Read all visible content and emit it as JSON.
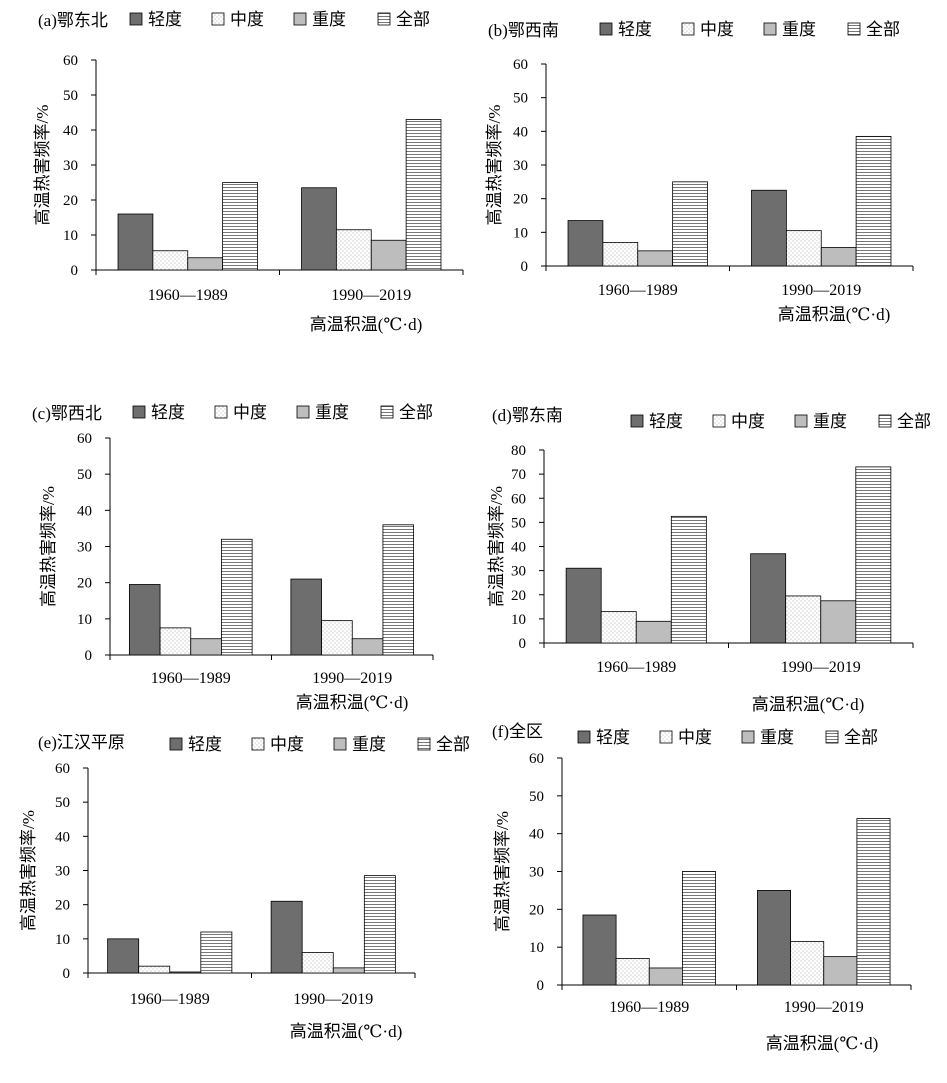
{
  "patterns": {
    "light": {
      "fill": "#6e6e6e"
    },
    "medium": {
      "fill": "#ffffff",
      "dots": "#9a9a9a"
    },
    "heavy": {
      "fill": "#bdbdbd"
    },
    "all": {
      "fill": "#ffffff",
      "lines": "#555555"
    }
  },
  "chart_data": [
    {
      "type": "bar",
      "title": "(a)鄂东北",
      "categories": [
        "1960—1989",
        "1990—2019"
      ],
      "series": [
        {
          "name": "轻度",
          "key": "light",
          "values": [
            16,
            23.5
          ]
        },
        {
          "name": "中度",
          "key": "medium",
          "values": [
            5.5,
            11.5
          ]
        },
        {
          "name": "重度",
          "key": "heavy",
          "values": [
            3.5,
            8.5
          ]
        },
        {
          "name": "全部",
          "key": "all",
          "values": [
            25,
            43
          ]
        }
      ],
      "ylabel": "高温热害频率/%",
      "xlabel": "高温积温(℃·d)",
      "ylim": [
        0,
        60
      ],
      "yticks": [
        "0",
        "10",
        "20",
        "30",
        "40",
        "50",
        "60"
      ],
      "legend": "top"
    },
    {
      "type": "bar",
      "title": "(b)鄂西南",
      "categories": [
        "1960—1989",
        "1990—2019"
      ],
      "series": [
        {
          "name": "轻度",
          "key": "light",
          "values": [
            13.5,
            22.5
          ]
        },
        {
          "name": "中度",
          "key": "medium",
          "values": [
            7,
            10.5
          ]
        },
        {
          "name": "重度",
          "key": "heavy",
          "values": [
            4.5,
            5.5
          ]
        },
        {
          "name": "全部",
          "key": "all",
          "values": [
            25,
            38.5
          ]
        }
      ],
      "ylabel": "高温热害频率/%",
      "xlabel": "高温积温(℃·d)",
      "ylim": [
        0,
        60
      ],
      "yticks": [
        "0",
        "10",
        "20",
        "30",
        "40",
        "50",
        "60"
      ],
      "legend": "top"
    },
    {
      "type": "bar",
      "title": "(c)鄂西北",
      "categories": [
        "1960—1989",
        "1990—2019"
      ],
      "series": [
        {
          "name": "轻度",
          "key": "light",
          "values": [
            19.5,
            21
          ]
        },
        {
          "name": "中度",
          "key": "medium",
          "values": [
            7.5,
            9.5
          ]
        },
        {
          "name": "重度",
          "key": "heavy",
          "values": [
            4.5,
            4.5
          ]
        },
        {
          "name": "全部",
          "key": "all",
          "values": [
            32,
            36
          ]
        }
      ],
      "ylabel": "高温热害频率/%",
      "xlabel": "高温积温(℃·d)",
      "ylim": [
        0,
        60
      ],
      "yticks": [
        "0",
        "10",
        "20",
        "30",
        "40",
        "50",
        "60"
      ],
      "legend": "top"
    },
    {
      "type": "bar",
      "title": "(d)鄂东南",
      "categories": [
        "1960—1989",
        "1990—2019"
      ],
      "series": [
        {
          "name": "轻度",
          "key": "light",
          "values": [
            31,
            37
          ]
        },
        {
          "name": "中度",
          "key": "medium",
          "values": [
            13,
            19.5
          ]
        },
        {
          "name": "重度",
          "key": "heavy",
          "values": [
            9,
            17.5
          ]
        },
        {
          "name": "全部",
          "key": "all",
          "values": [
            52.5,
            73
          ]
        }
      ],
      "ylabel": "高温热害频率/%",
      "xlabel": "高温积温(℃·d)",
      "ylim": [
        0,
        80
      ],
      "yticks": [
        "0",
        "10",
        "20",
        "30",
        "40",
        "50",
        "60",
        "70",
        "80"
      ],
      "legend": "top"
    },
    {
      "type": "bar",
      "title": "(e)江汉平原",
      "categories": [
        "1960—1989",
        "1990—2019"
      ],
      "series": [
        {
          "name": "轻度",
          "key": "light",
          "values": [
            10,
            21
          ]
        },
        {
          "name": "中度",
          "key": "medium",
          "values": [
            2,
            6
          ]
        },
        {
          "name": "重度",
          "key": "heavy",
          "values": [
            0.3,
            1.5
          ]
        },
        {
          "name": "全部",
          "key": "all",
          "values": [
            12,
            28.5
          ]
        }
      ],
      "ylabel": "高温热害频率/%",
      "xlabel": "高温积温(℃·d)",
      "ylim": [
        0,
        60
      ],
      "yticks": [
        "0",
        "10",
        "20",
        "30",
        "40",
        "50",
        "60"
      ],
      "legend": "top"
    },
    {
      "type": "bar",
      "title": "(f)全区",
      "categories": [
        "1960—1989",
        "1990—2019"
      ],
      "series": [
        {
          "name": "轻度",
          "key": "light",
          "values": [
            18.5,
            25
          ]
        },
        {
          "name": "中度",
          "key": "medium",
          "values": [
            7,
            11.5
          ]
        },
        {
          "name": "重度",
          "key": "heavy",
          "values": [
            4.5,
            7.5
          ]
        },
        {
          "name": "全部",
          "key": "all",
          "values": [
            30,
            44
          ]
        }
      ],
      "ylabel": "高温热害频率/%",
      "xlabel": "高温积温(℃·d)",
      "ylim": [
        0,
        60
      ],
      "yticks": [
        "0",
        "10",
        "20",
        "30",
        "40",
        "50",
        "60"
      ],
      "legend": "top"
    }
  ]
}
